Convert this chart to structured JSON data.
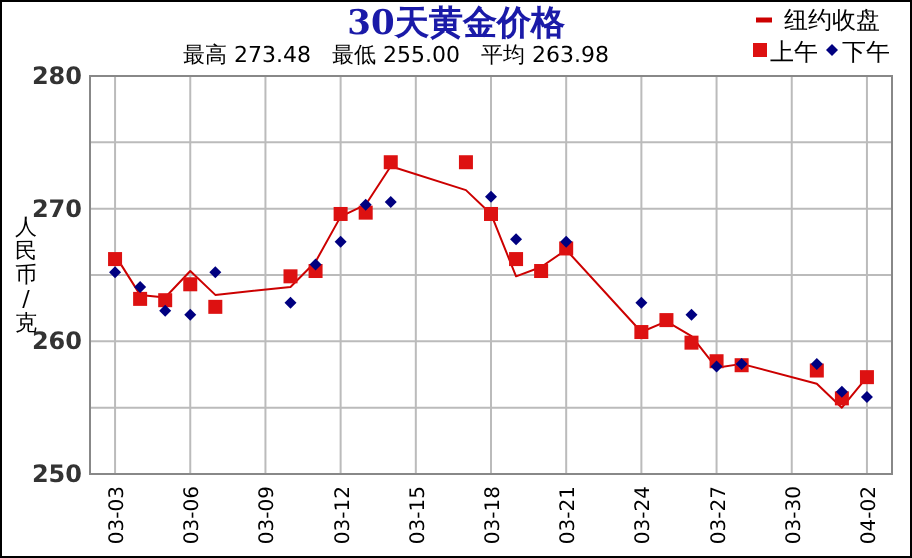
{
  "chart_data": {
    "type": "line",
    "title": "30天黄金价格",
    "subtitle": "最高 273.48   最低 255.00   平均 263.98",
    "ylabel": "人民币/克",
    "xlim": [
      "--03-02",
      "--04-03"
    ],
    "ylim": [
      250,
      280
    ],
    "xticks": [
      {
        "value": "--03-03",
        "label": "03-03"
      },
      {
        "value": "--03-06",
        "label": "03-06"
      },
      {
        "value": "--03-09",
        "label": "03-09"
      },
      {
        "value": "--03-12",
        "label": "03-12"
      },
      {
        "value": "--03-15",
        "label": "03-15"
      },
      {
        "value": "--03-18",
        "label": "03-18"
      },
      {
        "value": "--03-21",
        "label": "03-21"
      },
      {
        "value": "--03-24",
        "label": "03-24"
      },
      {
        "value": "--03-27",
        "label": "03-27"
      },
      {
        "value": "--03-30",
        "label": "03-30"
      },
      {
        "value": "--04-02",
        "label": "04-02"
      }
    ],
    "yticks": [
      250,
      {
        "value": 255,
        "label": null
      },
      260,
      {
        "value": 265,
        "label": null
      },
      270,
      {
        "value": 275,
        "label": null
      },
      280
    ],
    "grid": true,
    "legend": "top right",
    "series": [
      {
        "name": "纽约收盘",
        "color": "#cc0000",
        "marker": "none",
        "x": [
          "--03-03",
          "--03-04",
          "--03-05",
          "--03-06",
          "--03-07",
          "--03-10",
          "--03-11",
          "--03-12",
          "--03-13",
          "--03-14",
          "--03-17",
          "--03-18",
          "--03-19",
          "--03-20",
          "--03-21",
          "--03-24",
          "--03-25",
          "--03-26",
          "--03-27",
          "--03-28",
          "--03-31",
          "--04-01",
          "--04-02"
        ],
        "values": [
          266.5,
          263.5,
          263.3,
          265.3,
          263.5,
          264.1,
          266.0,
          269.4,
          270.3,
          273.2,
          271.4,
          269.6,
          264.9,
          265.6,
          266.9,
          260.7,
          261.5,
          260.4,
          258.0,
          258.3,
          256.8,
          255.0,
          257.3
        ]
      },
      {
        "name": "上午",
        "type": "scatter",
        "color": "#dd1111",
        "marker": "square",
        "x": [
          "--03-03",
          "--03-04",
          "--03-05",
          "--03-06",
          "--03-07",
          "--03-10",
          "--03-11",
          "--03-12",
          "--03-13",
          "--03-14",
          "--03-17",
          "--03-18",
          "--03-19",
          "--03-20",
          "--03-21",
          "--03-24",
          "--03-25",
          "--03-26",
          "--03-27",
          "--03-28",
          "--03-31",
          "--04-01",
          "--04-02"
        ],
        "values": [
          266.2,
          263.2,
          263.1,
          264.3,
          262.6,
          264.9,
          265.3,
          269.6,
          269.7,
          273.5,
          273.5,
          269.6,
          266.2,
          265.3,
          267.0,
          260.7,
          261.6,
          259.9,
          258.5,
          258.2,
          257.8,
          255.7,
          257.3
        ]
      },
      {
        "name": "下午",
        "type": "scatter",
        "color": "#000080",
        "marker": "diamond",
        "x": [
          "--03-03",
          "--03-04",
          "--03-05",
          "--03-06",
          "--03-07",
          "--03-10",
          "--03-11",
          "--03-12",
          "--03-13",
          "--03-14",
          "--03-18",
          "--03-19",
          "--03-21",
          "--03-24",
          "--03-26",
          "--03-27",
          "--03-28",
          "--03-31",
          "--04-01",
          "--04-02"
        ],
        "values": [
          265.2,
          264.1,
          262.3,
          262.0,
          265.2,
          262.9,
          265.8,
          267.5,
          270.3,
          270.5,
          270.9,
          267.7,
          267.5,
          262.9,
          262.0,
          258.1,
          258.3,
          258.3,
          256.2,
          255.8
        ]
      }
    ]
  }
}
